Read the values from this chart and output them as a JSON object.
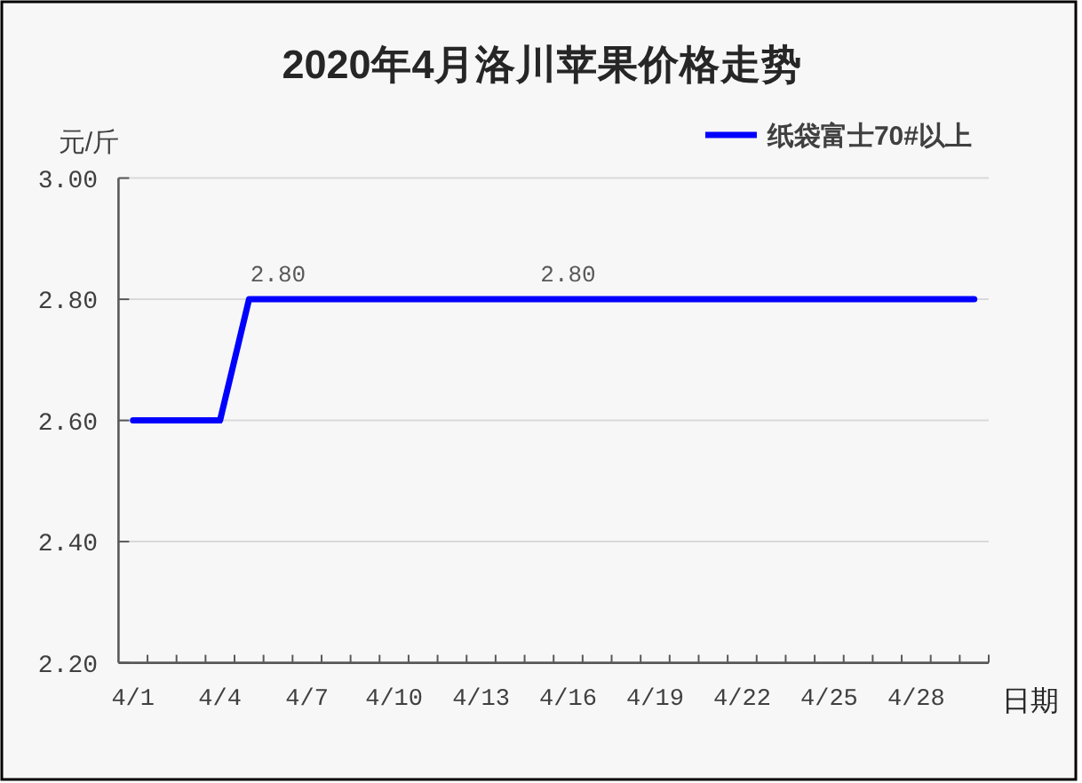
{
  "chart_data": {
    "type": "line",
    "title": "2020年4月洛川苹果价格走势",
    "ylabel": "元/斤",
    "xlabel": "日期",
    "categories": [
      "4/1",
      null,
      null,
      "4/4",
      null,
      null,
      "4/7",
      null,
      null,
      "4/10",
      null,
      null,
      "4/13",
      null,
      null,
      "4/16",
      null,
      null,
      "4/19",
      null,
      null,
      "4/22",
      null,
      null,
      "4/25",
      null,
      null,
      "4/28",
      null,
      null
    ],
    "series": [
      {
        "name": "纸袋富士70#以上",
        "color": "#0000ff",
        "values": [
          2.6,
          2.6,
          2.6,
          2.6,
          2.8,
          2.8,
          2.8,
          2.8,
          2.8,
          2.8,
          2.8,
          2.8,
          2.8,
          2.8,
          2.8,
          2.8,
          2.8,
          2.8,
          2.8,
          2.8,
          2.8,
          2.8,
          2.8,
          2.8,
          2.8,
          2.8,
          2.8,
          2.8,
          2.8,
          2.8
        ],
        "value_labels": [
          null,
          null,
          null,
          null,
          null,
          "2.80",
          null,
          null,
          null,
          null,
          null,
          null,
          null,
          null,
          null,
          "2.80",
          null,
          null,
          null,
          null,
          null,
          null,
          null,
          null,
          null,
          null,
          null,
          null,
          null,
          null
        ]
      }
    ],
    "ylim": [
      2.2,
      3.0
    ],
    "yticks": [
      {
        "value": 2.2,
        "label": "2.20"
      },
      {
        "value": 2.4,
        "label": "2.40"
      },
      {
        "value": 2.6,
        "label": "2.60"
      },
      {
        "value": 2.8,
        "label": "2.80"
      },
      {
        "value": 3.0,
        "label": "3.00"
      }
    ],
    "grid": "y",
    "legend": "top right"
  }
}
